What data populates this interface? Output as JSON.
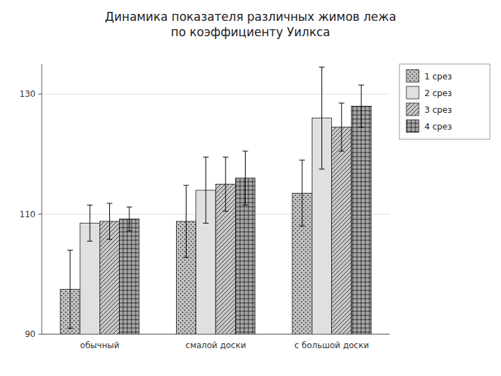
{
  "chart_data": {
    "type": "bar",
    "title": "Динамика показателя различных жимов лежа\nпо коэффициенту Уилкса",
    "categories": [
      "обычный",
      "смалой доски",
      "с большой доски"
    ],
    "series": [
      {
        "name": "1 срез",
        "color": "#c0c0c0",
        "values": [
          97.5,
          108.8,
          113.5
        ],
        "errors": [
          6.5,
          6.0,
          5.5
        ]
      },
      {
        "name": "2 срез",
        "color": "#e0e0e0",
        "values": [
          108.5,
          114.0,
          126.0
        ],
        "errors": [
          3.0,
          5.5,
          8.5
        ]
      },
      {
        "name": "3 срез",
        "color": "#c8c8c8",
        "values": [
          108.8,
          115.0,
          124.5
        ],
        "errors": [
          3.0,
          4.5,
          4.0
        ]
      },
      {
        "name": "4 срез",
        "color": "#a8a8a8",
        "values": [
          109.2,
          116.0,
          128.0
        ],
        "errors": [
          2.0,
          4.5,
          3.5
        ]
      }
    ],
    "ylim": [
      90,
      135
    ],
    "yticks": [
      90,
      110,
      130
    ],
    "grid": true,
    "legend": "upper right"
  }
}
